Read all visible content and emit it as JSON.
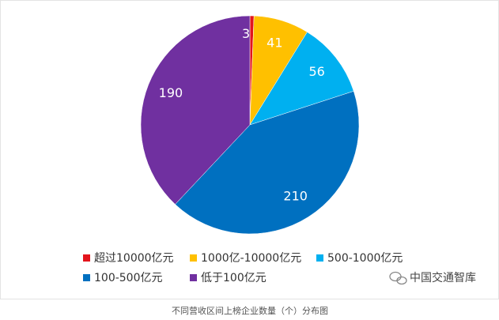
{
  "chart_data": {
    "type": "pie",
    "title": "不同营收区间上榜企业数量（个）分布图",
    "watermark": "中国交通智库",
    "categories": [
      "超过10000亿元",
      "1000亿-10000亿元",
      "500-1000亿元",
      "100-500亿元",
      "低于100亿元"
    ],
    "values": [
      3,
      41,
      56,
      210,
      190
    ],
    "colors": [
      "#e3141c",
      "#ffc000",
      "#00b0f0",
      "#0070c0",
      "#7030a0"
    ]
  }
}
